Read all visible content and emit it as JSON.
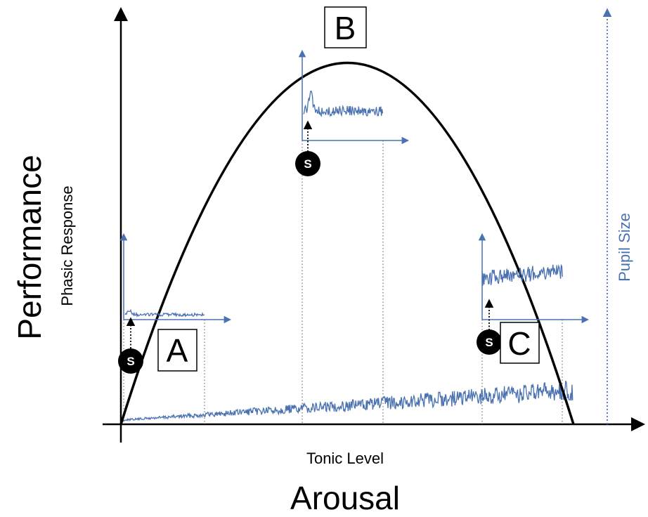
{
  "labels": {
    "y_axis_main": "Performance",
    "y_axis_sub": "Phasic Response",
    "x_axis_main": "Arousal",
    "x_axis_sub": "Tonic Level",
    "right_axis": "Pupil Size"
  },
  "states": {
    "a": "A",
    "b": "B",
    "c": "C"
  },
  "stimulus_marker": "S",
  "colors": {
    "curve": "#000000",
    "signal": "#4a72b0",
    "pupil_axis": "#4a72b0",
    "marker": "#000000"
  },
  "icons": {
    "stimulus": "black-circle-with-letter",
    "trigger": "dotted-up-arrow"
  }
}
